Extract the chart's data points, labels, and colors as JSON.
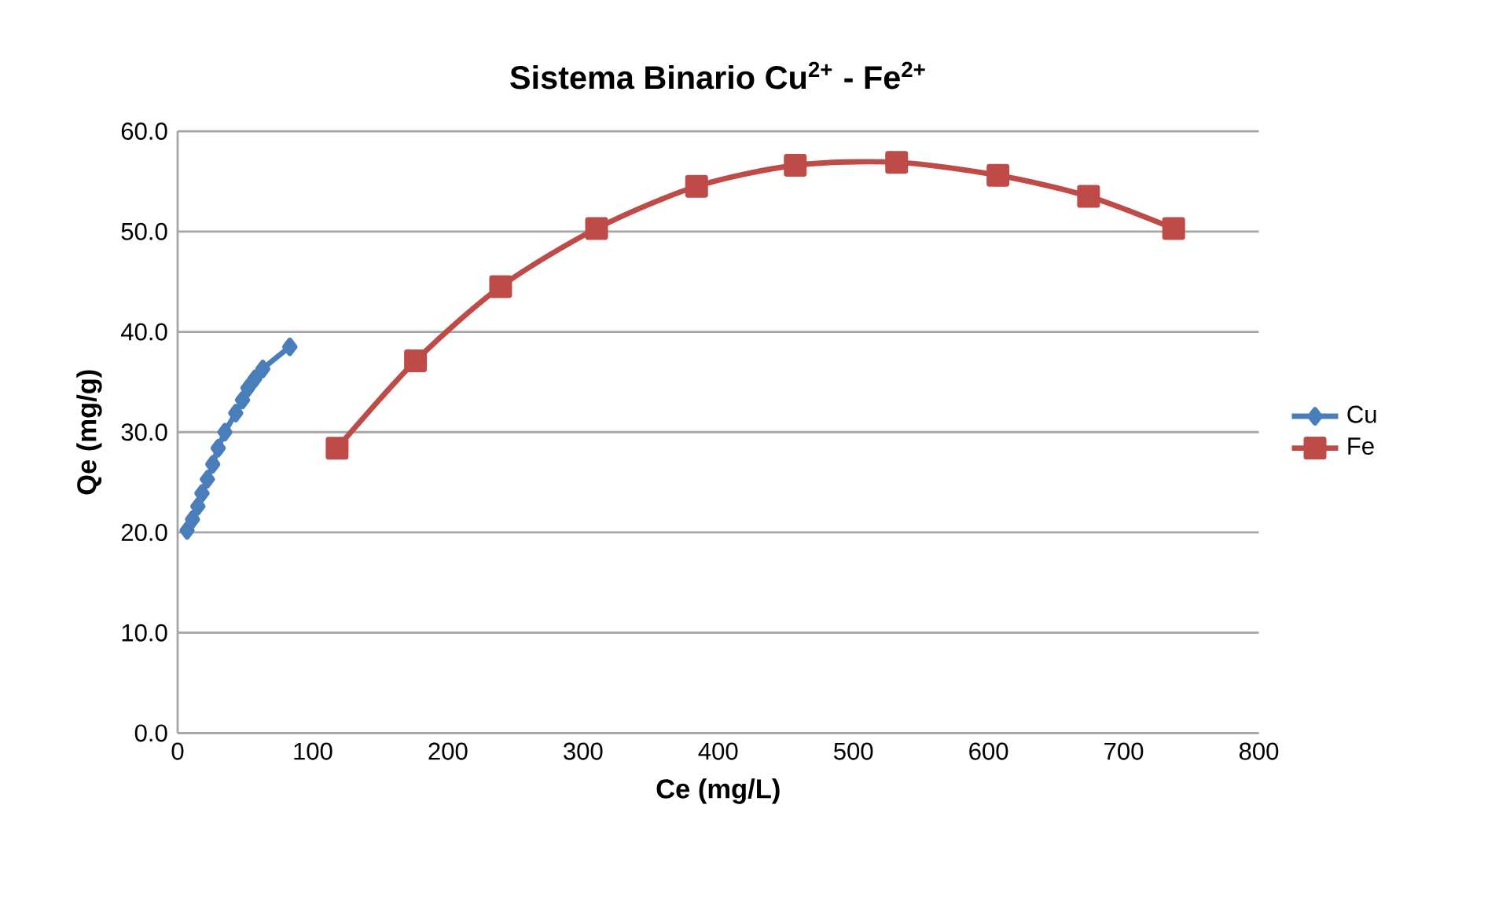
{
  "chart_data": {
    "type": "line",
    "title": "Sistema Binario Cu$^{2+}$ - Fe$^{2+}$",
    "xlabel": "Ce (mg/L)",
    "ylabel": "Qe (mg/g)",
    "xlim": [
      0,
      800
    ],
    "xticks": [
      0,
      100,
      200,
      300,
      400,
      500,
      600,
      700,
      800
    ],
    "ylim": [
      0,
      60
    ],
    "yticks": [
      {
        "value": 0,
        "label": "0.0"
      },
      {
        "value": 10,
        "label": "10.0"
      },
      {
        "value": 20,
        "label": "20.0"
      },
      {
        "value": 30,
        "label": "30.0"
      },
      {
        "value": 40,
        "label": "40.0"
      },
      {
        "value": 50,
        "label": "50.0"
      },
      {
        "value": 60,
        "label": "60.0"
      }
    ],
    "grid": "y",
    "legend": "right",
    "series": [
      {
        "name": "Cu",
        "color": "#4a7ebb",
        "marker": "diamond",
        "x": [
          7,
          11,
          15,
          18,
          22,
          26,
          30,
          35,
          43,
          48,
          52,
          57,
          63,
          83
        ],
        "values": [
          20.2,
          21.3,
          22.6,
          23.9,
          25.3,
          26.8,
          28.4,
          30.0,
          31.9,
          33.2,
          34.4,
          35.3,
          36.3,
          38.5
        ]
      },
      {
        "name": "Fe",
        "color": "#be4b48",
        "marker": "square",
        "x": [
          118,
          176,
          239,
          310,
          384,
          457,
          532,
          607,
          674,
          737
        ],
        "values": [
          28.4,
          37.1,
          44.5,
          50.3,
          54.5,
          56.6,
          56.9,
          55.6,
          53.5,
          50.3
        ]
      }
    ]
  }
}
